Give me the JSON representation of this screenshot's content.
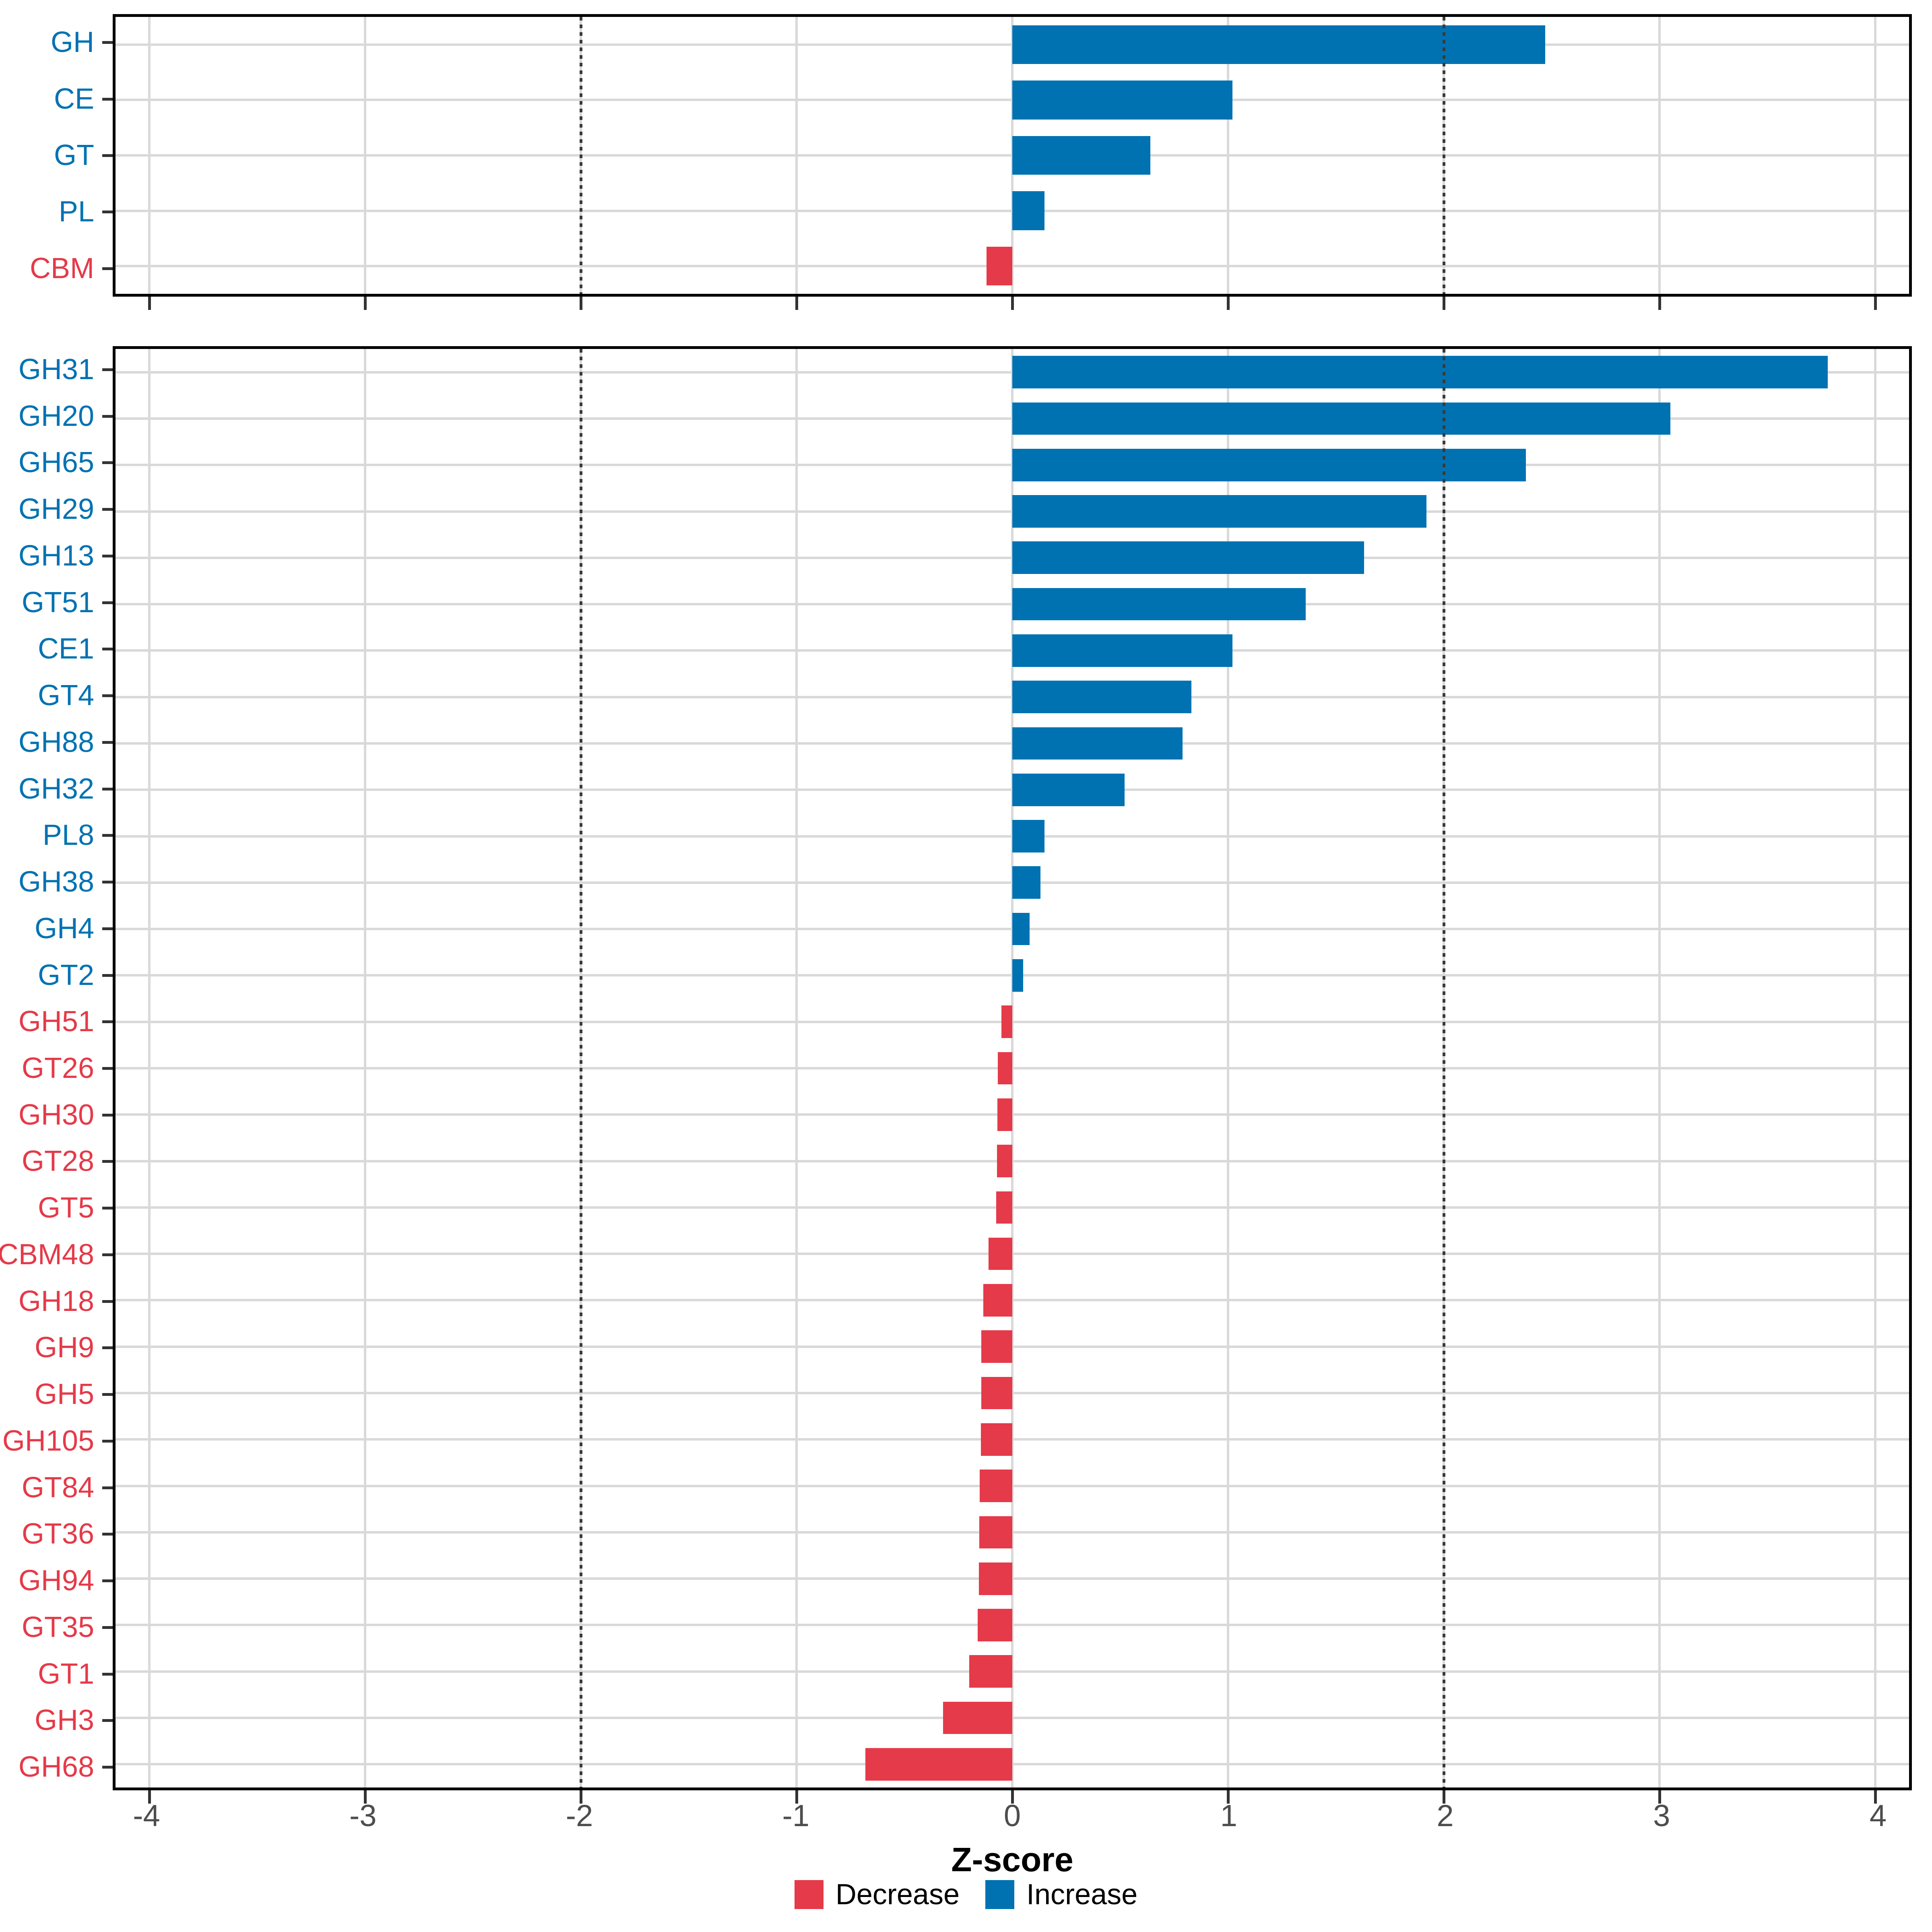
{
  "figure": {
    "background": "#FFFFFF"
  },
  "axis_x": {
    "title": "Z-score",
    "tick_labels": [
      "-4",
      "-3",
      "-2",
      "-1",
      "0",
      "1",
      "2",
      "3",
      "4"
    ],
    "ticks": [
      -4,
      -3,
      -2,
      -1,
      0,
      1,
      2,
      3,
      4
    ],
    "range": [
      -4.156,
      4.156
    ],
    "reference_lines": [
      -2,
      2
    ]
  },
  "legend": {
    "items": [
      {
        "label": "Decrease",
        "color": "#E53A49"
      },
      {
        "label": "Increase",
        "color": "#0072B2"
      }
    ]
  },
  "colors": {
    "increase": "#0072B2",
    "decrease": "#E53A49",
    "gridline": "#D9D9D9",
    "reference_line": "#3A3A3A",
    "axis_text": "#4D4D4D",
    "axis_line": "#000000",
    "panel_background": "#FFFFFF"
  },
  "chart_data": [
    {
      "type": "bar",
      "orientation": "horizontal",
      "panel": "cazyme-classes",
      "xlabel": "Z-score",
      "xlim": [
        -4.156,
        4.156
      ],
      "grid": true,
      "categories": [
        "GH",
        "CE",
        "GT",
        "PL",
        "CBM"
      ],
      "values": [
        2.47,
        1.02,
        0.64,
        0.15,
        -0.12
      ]
    },
    {
      "type": "bar",
      "orientation": "horizontal",
      "panel": "cazyme-families",
      "xlabel": "Z-score",
      "xlim": [
        -4.156,
        4.156
      ],
      "grid": true,
      "categories": [
        "GH31",
        "GH20",
        "GH65",
        "GH29",
        "GH13",
        "GT51",
        "CE1",
        "GT4",
        "GH88",
        "GH32",
        "PL8",
        "GH38",
        "GH4",
        "GT2",
        "GH51",
        "GT26",
        "GH30",
        "GT28",
        "GT5",
        "CBM48",
        "GH18",
        "GH9",
        "GH5",
        "GH105",
        "GT84",
        "GT36",
        "GH94",
        "GT35",
        "GT1",
        "GH3",
        "GH68"
      ],
      "values": [
        3.78,
        3.05,
        2.38,
        1.92,
        1.63,
        1.36,
        1.02,
        0.83,
        0.79,
        0.52,
        0.15,
        0.13,
        0.08,
        0.05,
        -0.05,
        -0.068,
        -0.069,
        -0.07,
        -0.075,
        -0.11,
        -0.135,
        -0.143,
        -0.144,
        -0.145,
        -0.152,
        -0.153,
        -0.154,
        -0.16,
        -0.2,
        -0.32,
        -0.68
      ]
    }
  ]
}
